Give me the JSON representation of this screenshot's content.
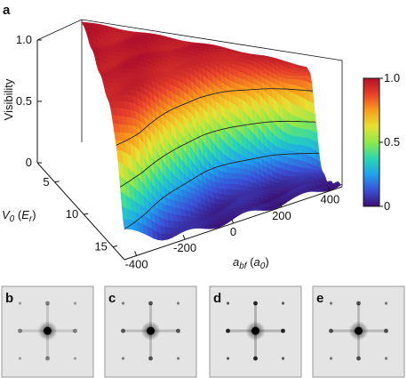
{
  "panels": {
    "a": "a",
    "b": "b",
    "c": "c",
    "d": "d",
    "e": "e"
  },
  "chart_data": {
    "type": "surface",
    "z_label": "Visibility",
    "y_label_var": "V",
    "y_label_sub": "0",
    "y_label_unit": "E",
    "y_label_unit_sub": "r",
    "x_label_var": "a",
    "x_label_sub": "bf",
    "x_label_unit": "a",
    "x_label_unit_sub": "0",
    "z_ticks": [
      "1.0",
      "0.5",
      "0"
    ],
    "z_tick_values": [
      1.0,
      0.5,
      0
    ],
    "y_ticks": [
      "5",
      "10",
      "15"
    ],
    "y_tick_values": [
      5,
      10,
      15
    ],
    "x_ticks": [
      "-400",
      "-200",
      "0",
      "200",
      "400"
    ],
    "x_tick_values": [
      -400,
      -200,
      0,
      200,
      400
    ],
    "zlim": [
      0,
      1
    ],
    "ylim": [
      2,
      17
    ],
    "xlim": [
      -450,
      450
    ],
    "colorbar": {
      "ticks": [
        "1.0",
        "0.5",
        "0"
      ],
      "values": [
        1.0,
        0.5,
        0
      ],
      "colormap": [
        "#3b0f70",
        "#3a4fd6",
        "#1fa2ee",
        "#2bd7b0",
        "#8fe84a",
        "#e7e133",
        "#f99d1c",
        "#e8412a",
        "#b0112a"
      ]
    },
    "visibility_profile": {
      "description_free": true,
      "x": [
        -450,
        -350,
        -250,
        -150,
        -50,
        50,
        150,
        250,
        350,
        450
      ],
      "v_half": [
        15.5,
        14.5,
        13.0,
        11.5,
        10.0,
        9.0,
        8.0,
        7.0,
        6.3,
        5.8
      ]
    },
    "contour_levels": [
      0.25,
      0.5,
      0.75
    ]
  }
}
